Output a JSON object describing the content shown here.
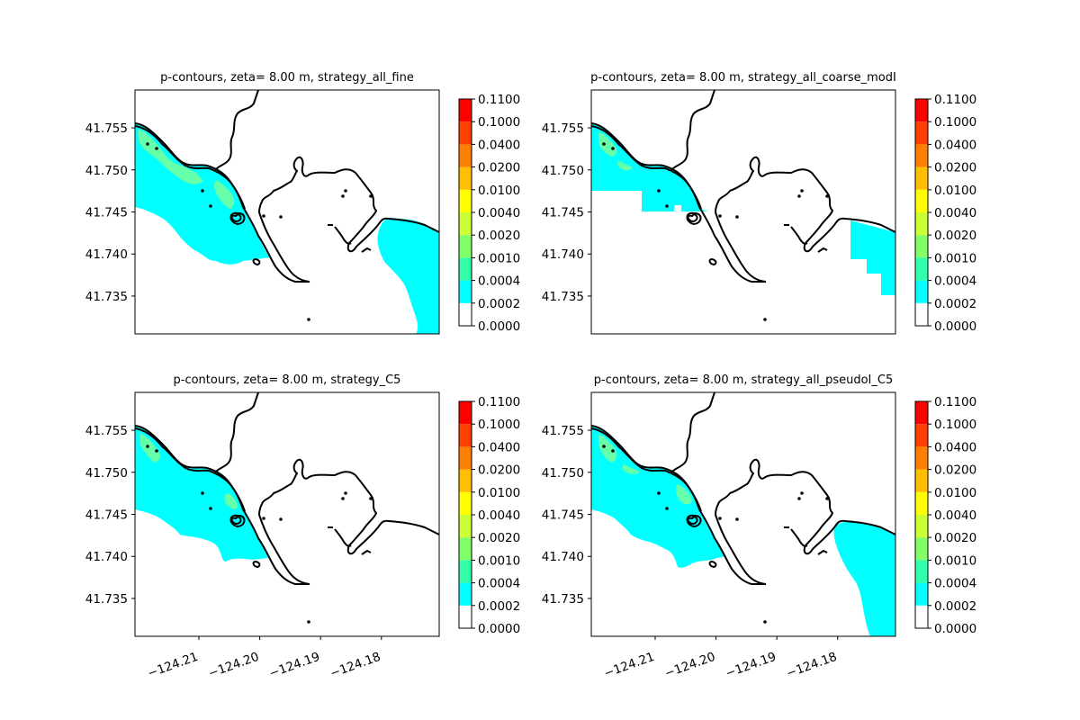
{
  "chart_data": [
    {
      "type": "heatmap",
      "subtype": "filled-contour-map",
      "title": "p-contours, zeta= 8.00 m, strategy_all_fine",
      "xlim": [
        -124.2205,
        -124.1705
      ],
      "ylim": [
        41.7305,
        41.7595
      ],
      "xticks": [],
      "yticks": [
        "41.735",
        "41.740",
        "41.745",
        "41.750",
        "41.755"
      ],
      "filled_levels": [
        "0.0002–0.0004",
        "0.0004–0.0010"
      ],
      "extent": "fine"
    },
    {
      "type": "heatmap",
      "subtype": "filled-contour-map",
      "title": "p-contours, zeta= 8.00 m, strategy_all_coarse_modI",
      "xlim": [
        -124.2205,
        -124.1705
      ],
      "ylim": [
        41.7305,
        41.7595
      ],
      "xticks": [],
      "yticks": [
        "41.735",
        "41.740",
        "41.745",
        "41.750",
        "41.755"
      ],
      "filled_levels": [
        "0.0002–0.0004",
        "0.0004–0.0010"
      ],
      "extent": "coarse"
    },
    {
      "type": "heatmap",
      "subtype": "filled-contour-map",
      "title": "p-contours, zeta= 8.00 m, strategy_C5",
      "xlim": [
        -124.2205,
        -124.1705
      ],
      "ylim": [
        41.7305,
        41.7595
      ],
      "xticks": [
        "−124.21",
        "−124.20",
        "−124.19",
        "−124.18"
      ],
      "yticks": [
        "41.735",
        "41.740",
        "41.745",
        "41.750",
        "41.755"
      ],
      "filled_levels": [
        "0.0002–0.0004",
        "0.0004–0.0010"
      ],
      "extent": "c5"
    },
    {
      "type": "heatmap",
      "subtype": "filled-contour-map",
      "title": "p-contours, zeta= 8.00 m, strategy_all_pseudoI_C5",
      "xlim": [
        -124.2205,
        -124.1705
      ],
      "ylim": [
        41.7305,
        41.7595
      ],
      "xticks": [
        "−124.21",
        "−124.20",
        "−124.19",
        "−124.18"
      ],
      "yticks": [
        "41.735",
        "41.740",
        "41.745",
        "41.750",
        "41.755"
      ],
      "filled_levels": [
        "0.0002–0.0004",
        "0.0004–0.0010"
      ],
      "extent": "pseudo"
    }
  ],
  "colorbar": {
    "levels": [
      "0.0000",
      "0.0002",
      "0.0004",
      "0.0010",
      "0.0020",
      "0.0040",
      "0.0100",
      "0.0200",
      "0.0400",
      "0.1000",
      "0.1100"
    ],
    "colors": [
      "#ffffff",
      "#00ffff",
      "#33ffaa",
      "#80ff66",
      "#ccff33",
      "#ffff00",
      "#ffbf00",
      "#ff8000",
      "#ff4000",
      "#ff0000"
    ]
  },
  "colors": {
    "low_fill": "#00ffff",
    "mid_fill": "#66ffaa",
    "coastline": "#000000"
  }
}
